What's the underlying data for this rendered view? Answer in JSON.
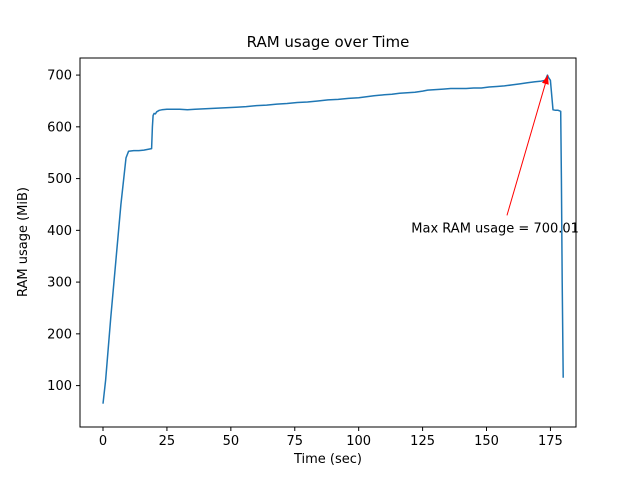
{
  "figure": {
    "background": "#ffffff"
  },
  "chart_data": {
    "type": "line",
    "title": "RAM usage over Time",
    "xlabel": "Time (sec)",
    "ylabel": "RAM usage (MiB)",
    "xlim": [
      -9,
      185
    ],
    "ylim": [
      20,
      733
    ],
    "x_ticks": [
      0,
      25,
      50,
      75,
      100,
      125,
      150,
      175
    ],
    "y_ticks": [
      100,
      200,
      300,
      400,
      500,
      600,
      700
    ],
    "grid": false,
    "legend": null,
    "line_color": "#1f77b4",
    "axis_color": "#000000",
    "series": [
      {
        "name": "RAM usage",
        "points": [
          [
            0,
            65
          ],
          [
            1,
            110
          ],
          [
            3,
            230
          ],
          [
            5,
            340
          ],
          [
            7,
            450
          ],
          [
            9,
            540
          ],
          [
            10,
            553
          ],
          [
            12,
            554
          ],
          [
            14,
            554
          ],
          [
            16,
            555
          ],
          [
            18,
            557
          ],
          [
            19,
            558
          ],
          [
            19.3,
            600
          ],
          [
            19.6,
            622
          ],
          [
            20,
            626
          ],
          [
            20.5,
            625
          ],
          [
            21,
            629
          ],
          [
            22,
            632
          ],
          [
            23,
            633
          ],
          [
            25,
            634
          ],
          [
            27,
            634
          ],
          [
            30,
            634
          ],
          [
            33,
            633
          ],
          [
            36,
            634
          ],
          [
            40,
            635
          ],
          [
            44,
            636
          ],
          [
            48,
            637
          ],
          [
            52,
            638
          ],
          [
            56,
            639
          ],
          [
            60,
            641
          ],
          [
            64,
            642
          ],
          [
            68,
            644
          ],
          [
            72,
            645
          ],
          [
            76,
            647
          ],
          [
            80,
            648
          ],
          [
            84,
            650
          ],
          [
            88,
            652
          ],
          [
            92,
            653
          ],
          [
            96,
            655
          ],
          [
            100,
            656
          ],
          [
            103,
            658
          ],
          [
            106,
            660
          ],
          [
            108,
            661
          ],
          [
            110,
            662
          ],
          [
            113,
            663
          ],
          [
            116,
            665
          ],
          [
            119,
            666
          ],
          [
            122,
            667
          ],
          [
            125,
            669
          ],
          [
            127,
            671
          ],
          [
            130,
            672
          ],
          [
            133,
            673
          ],
          [
            136,
            674
          ],
          [
            139,
            674
          ],
          [
            142,
            674
          ],
          [
            145,
            675
          ],
          [
            148,
            675
          ],
          [
            151,
            677
          ],
          [
            154,
            678
          ],
          [
            157,
            679
          ],
          [
            160,
            681
          ],
          [
            163,
            683
          ],
          [
            166,
            685
          ],
          [
            169,
            687
          ],
          [
            171,
            688
          ],
          [
            173,
            690
          ],
          [
            173.8,
            700.01
          ],
          [
            174.3,
            695
          ],
          [
            175,
            690
          ],
          [
            175.6,
            655
          ],
          [
            176,
            633
          ],
          [
            177,
            632
          ],
          [
            178,
            632
          ],
          [
            179,
            630
          ],
          [
            179.3,
            500
          ],
          [
            179.6,
            300
          ],
          [
            180,
            115
          ]
        ]
      }
    ],
    "max_value": 700.01,
    "annotation": {
      "text": "Max RAM usage = 700.01",
      "color": "#ff0000",
      "xy": [
        174,
        700.01
      ],
      "arrow_start": [
        158,
        429
      ],
      "text_pos": [
        120.6,
        404
      ]
    }
  }
}
